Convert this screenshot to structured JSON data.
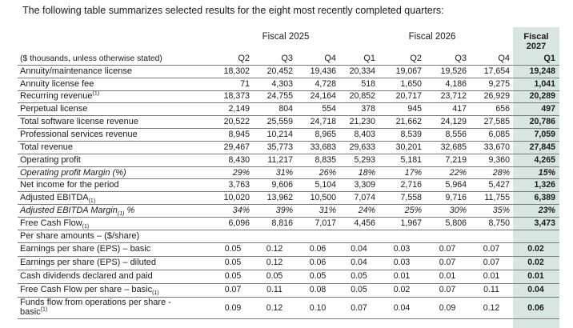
{
  "intro": "The following table summarizes selected results for the eight most recently completed quarters:",
  "groups": {
    "fy2025": "Fiscal 2025",
    "fy2026": "Fiscal 2026",
    "fy2027_line1": "Fiscal",
    "fy2027_line2": "2027"
  },
  "colors": {
    "highlight": "#d7e6e1",
    "rule": "#7a7a7a"
  },
  "header": {
    "label": "($ thousands, unless otherwise stated)",
    "quarters": [
      "Q2",
      "Q3",
      "Q4",
      "Q1",
      "Q2",
      "Q3",
      "Q4",
      "Q1"
    ]
  },
  "rows": [
    {
      "label": "Annuity/maintenance license",
      "values": [
        "18,302",
        "20,452",
        "19,436",
        "20,334",
        "19,067",
        "19,526",
        "17,654",
        "19,248"
      ]
    },
    {
      "label": "Annuity license fee",
      "values": [
        "71",
        "4,303",
        "4,728",
        "518",
        "1,650",
        "4,186",
        "9,275",
        "1,041"
      ]
    },
    {
      "label": "Recurring revenue",
      "note": "(1)",
      "values": [
        "18,373",
        "24,755",
        "24,164",
        "20,852",
        "20,717",
        "23,712",
        "26,929",
        "20,289"
      ]
    },
    {
      "label": "Perpetual license",
      "values": [
        "2,149",
        "804",
        "554",
        "378",
        "945",
        "417",
        "656",
        "497"
      ]
    },
    {
      "label": "Total software license revenue",
      "values": [
        "20,522",
        "25,559",
        "24,718",
        "21,230",
        "21,662",
        "24,129",
        "27,585",
        "20,786"
      ]
    },
    {
      "label": "Professional services revenue",
      "values": [
        "8,945",
        "10,214",
        "8,965",
        "8,403",
        "8,539",
        "8,556",
        "6,085",
        "7,059"
      ]
    },
    {
      "label": "Total revenue",
      "values": [
        "29,467",
        "35,773",
        "33,683",
        "29,633",
        "30,201",
        "32,685",
        "33,670",
        "27,845"
      ]
    },
    {
      "label": "Operating profit",
      "values": [
        "8,430",
        "11,217",
        "8,835",
        "5,293",
        "5,181",
        "7,219",
        "9,360",
        "4,265"
      ]
    },
    {
      "label": "Operating profit Margin (%)",
      "italic": true,
      "values": [
        "29%",
        "31%",
        "26%",
        "18%",
        "17%",
        "22%",
        "28%",
        "15%"
      ]
    },
    {
      "label": "Net income for the period",
      "values": [
        "3,763",
        "9,606",
        "5,104",
        "3,309",
        "2,716",
        "5,964",
        "5,427",
        "1,326"
      ]
    },
    {
      "label": "Adjusted EBITDA",
      "sub": "(1)",
      "values": [
        "10,020",
        "13,962",
        "10,500",
        "7,074",
        "7,558",
        "9,716",
        "11,755",
        "6,389"
      ]
    },
    {
      "label": "Adjusted EBITDA Margin",
      "sub": "(1)",
      "suffix": " %",
      "italic": true,
      "values": [
        "34%",
        "39%",
        "31%",
        "24%",
        "25%",
        "30%",
        "35%",
        "23%"
      ]
    },
    {
      "label": "Free Cash Flow",
      "sub": "(1)",
      "values": [
        "6,096",
        "8,816",
        "7,017",
        "4,456",
        "1,967",
        "5,806",
        "8,750",
        "3,473"
      ]
    },
    {
      "label": "Per share amounts – ($/share)",
      "values": [
        "",
        "",
        "",
        "",
        "",
        "",
        "",
        ""
      ]
    },
    {
      "label": "Earnings per share (EPS) – basic",
      "gap": true,
      "values": [
        "0.05",
        "0.12",
        "0.06",
        "0.04",
        "0.03",
        "0.07",
        "0.07",
        "0.02"
      ]
    },
    {
      "label": "Earnings per share (EPS) – diluted",
      "gap": true,
      "values": [
        "0.05",
        "0.12",
        "0.06",
        "0.04",
        "0.03",
        "0.07",
        "0.07",
        "0.02"
      ]
    },
    {
      "label": "Cash dividends declared and paid",
      "gap": true,
      "values": [
        "0.05",
        "0.05",
        "0.05",
        "0.05",
        "0.01",
        "0.01",
        "0.01",
        "0.01"
      ]
    },
    {
      "label": "Free Cash Flow per share – basic",
      "sub": "(1)",
      "gap": true,
      "values": [
        "0.07",
        "0.11",
        "0.08",
        "0.05",
        "0.02",
        "0.07",
        "0.11",
        "0.04"
      ]
    },
    {
      "label": "Funds flow from operations per share -",
      "label2": "basic",
      "note": "(1)",
      "tall": true,
      "values": [
        "0.09",
        "0.12",
        "0.10",
        "0.07",
        "0.04",
        "0.09",
        "0.12",
        "0.06"
      ]
    }
  ]
}
